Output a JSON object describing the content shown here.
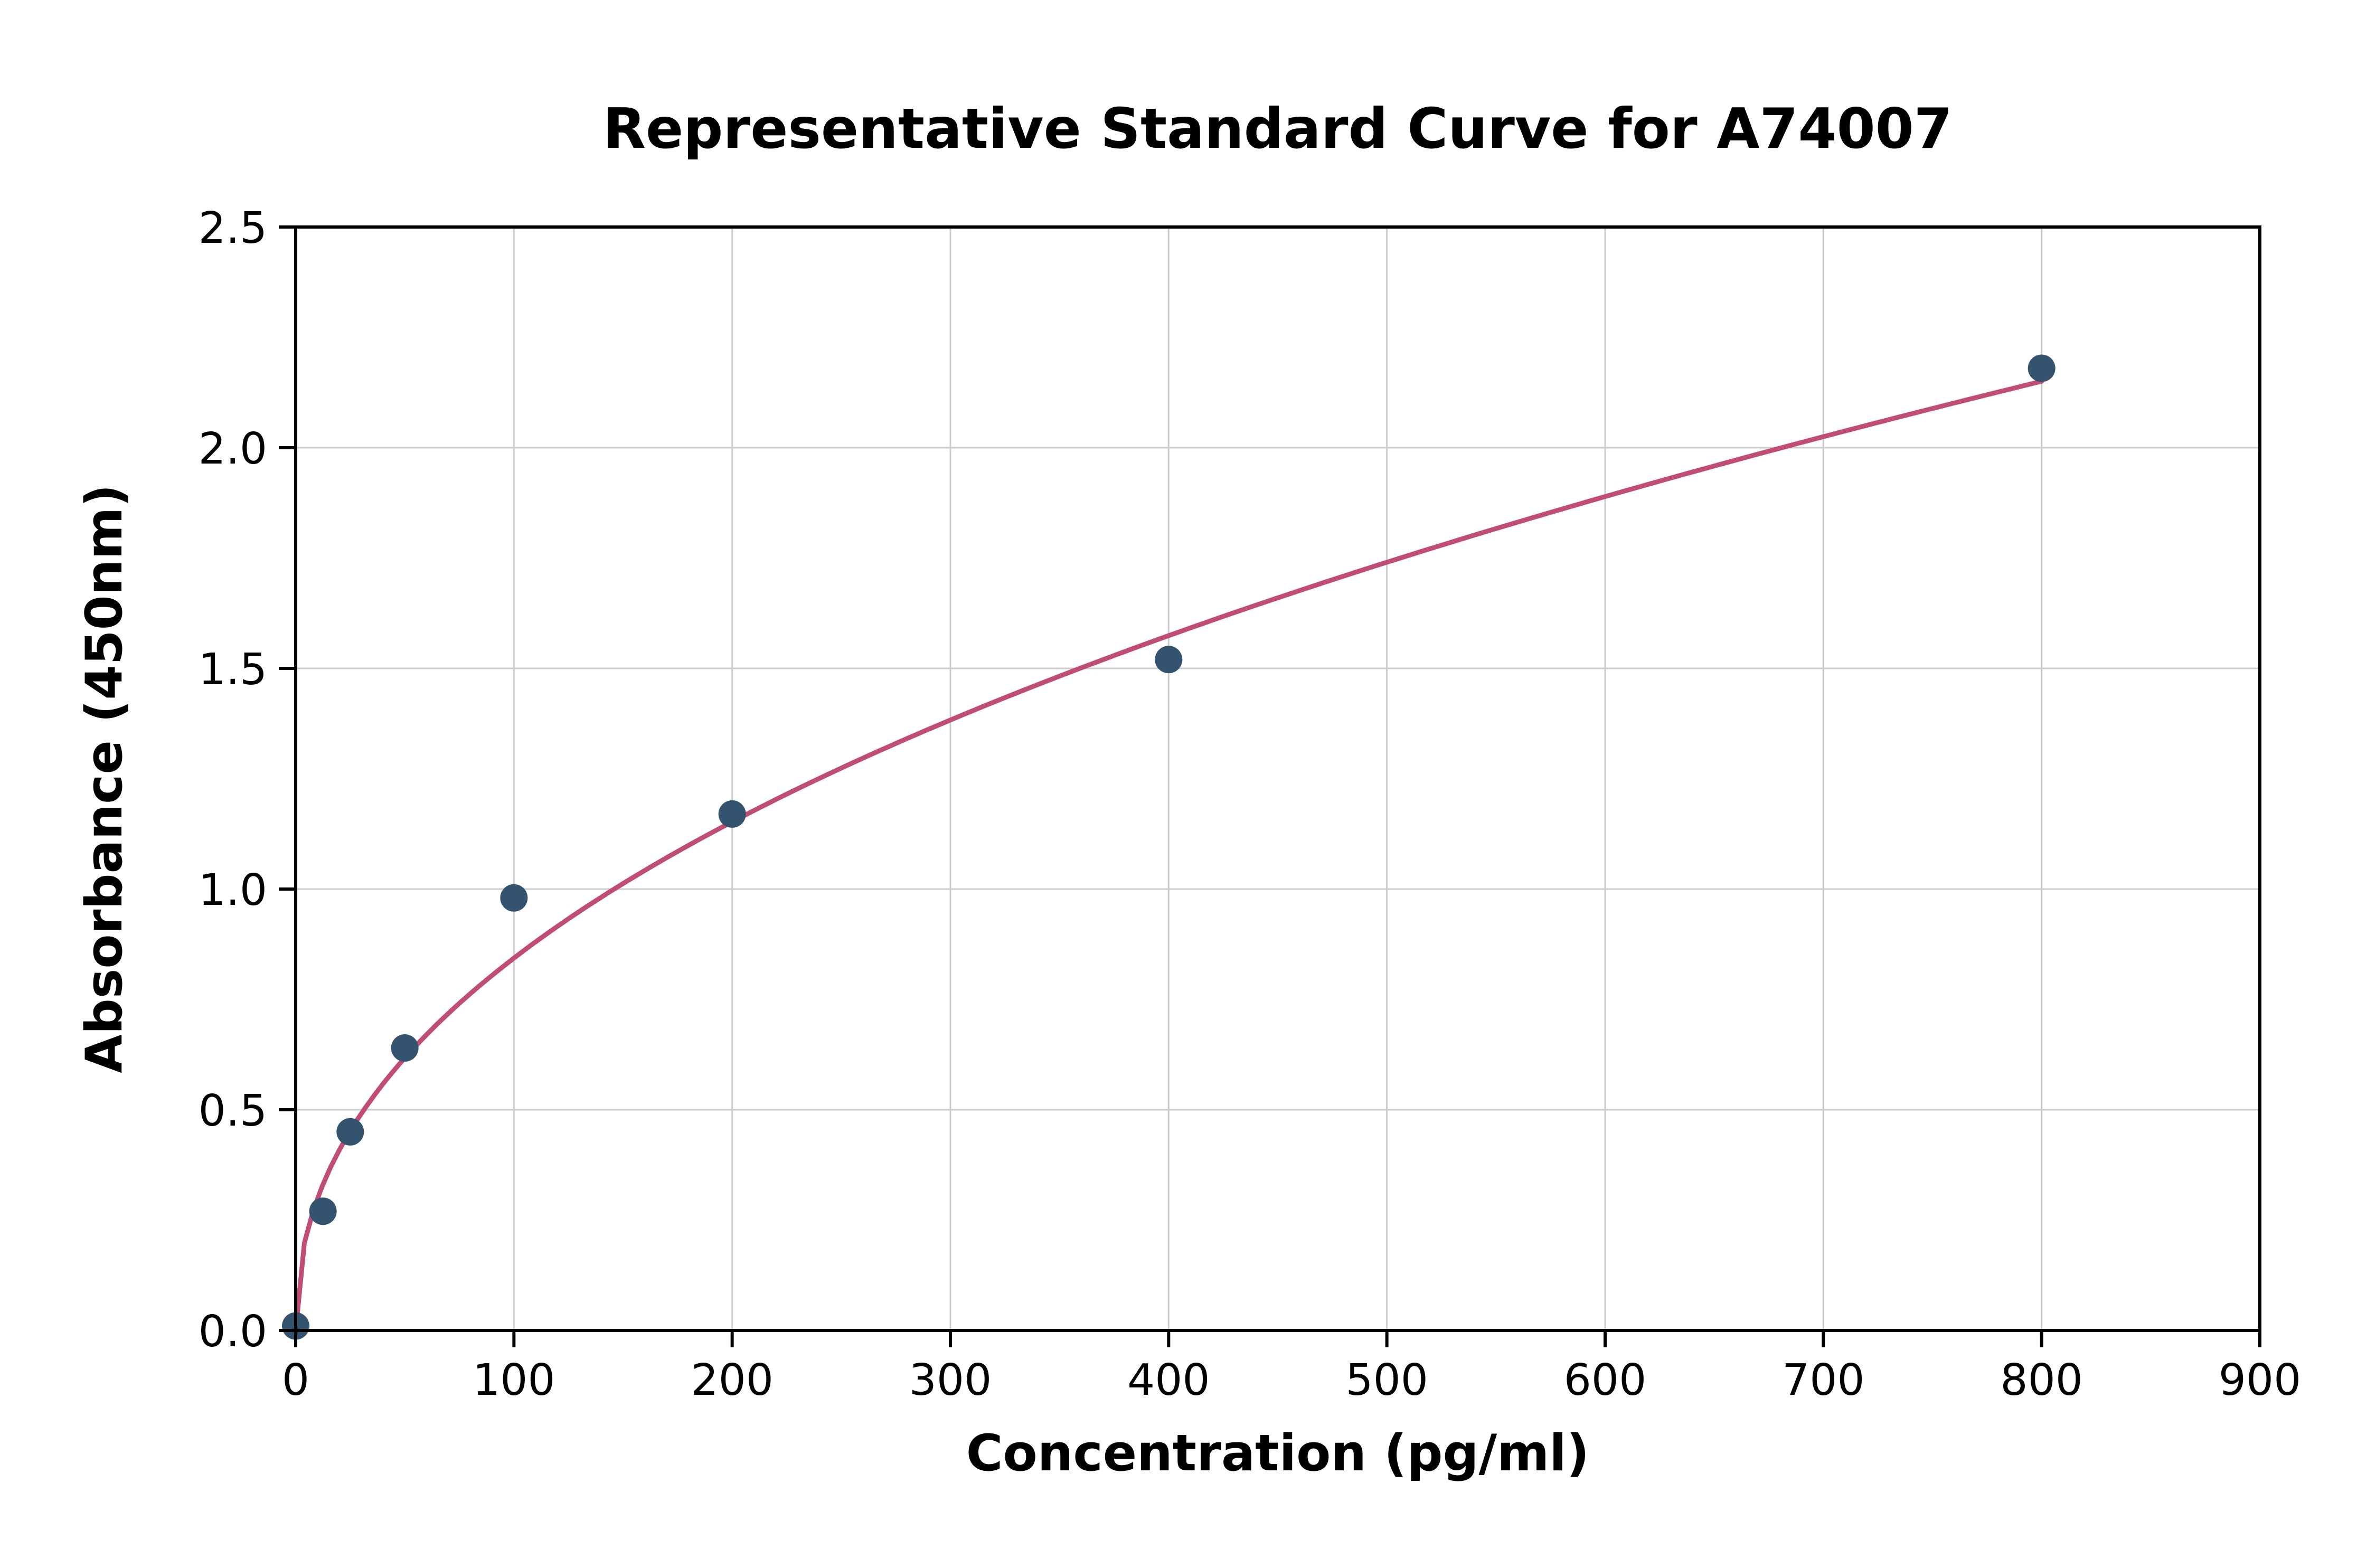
{
  "chart_data": {
    "type": "scatter",
    "title": "Representative Standard Curve for A74007",
    "xlabel": "Concentration (pg/ml)",
    "ylabel": "Absorbance (450nm)",
    "xlim": [
      0,
      900
    ],
    "ylim": [
      0,
      2.5
    ],
    "xticks": [
      0,
      100,
      200,
      300,
      400,
      500,
      600,
      700,
      800,
      900
    ],
    "xtick_labels": [
      "0",
      "100",
      "200",
      "300",
      "400",
      "500",
      "600",
      "700",
      "800",
      "900"
    ],
    "yticks": [
      0.0,
      0.5,
      1.0,
      1.5,
      2.0,
      2.5
    ],
    "ytick_labels": [
      "0.0",
      "0.5",
      "1.0",
      "1.5",
      "2.0",
      "2.5"
    ],
    "grid": true,
    "legend_position": "none",
    "points": [
      {
        "x": 0,
        "y": 0.01
      },
      {
        "x": 12.5,
        "y": 0.27
      },
      {
        "x": 25,
        "y": 0.45
      },
      {
        "x": 50,
        "y": 0.64
      },
      {
        "x": 100,
        "y": 0.98
      },
      {
        "x": 200,
        "y": 1.17
      },
      {
        "x": 400,
        "y": 1.52
      },
      {
        "x": 800,
        "y": 2.18
      }
    ],
    "fit_curve": {
      "model": "power",
      "a": 0.1062,
      "b": 0.45,
      "x_start": 0,
      "x_end": 800
    },
    "colors": {
      "point": "#33536f",
      "curve": "#bf4d74",
      "grid": "#cccccc",
      "spine": "#000000",
      "background": "#ffffff"
    }
  }
}
